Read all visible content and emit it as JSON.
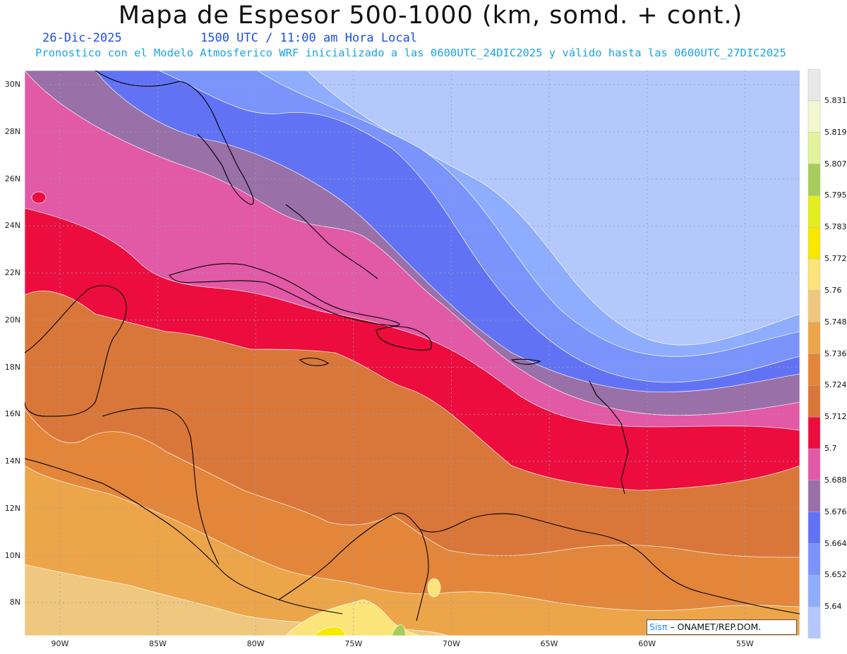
{
  "header": {
    "title": "Mapa de Espesor 500-1000 (km, somd. + cont.)",
    "date": "26-Dic-2025",
    "time": "1500 UTC / 11:00 am Hora Local",
    "description": "Pronostico con el Modelo Atmosferico WRF inicializado a las 0600UTC_24DIC2025 y válido hasta las  0600UTC_27DIC2025"
  },
  "map": {
    "lat_labels": [
      "30N",
      "28N",
      "26N",
      "24N",
      "22N",
      "20N",
      "18N",
      "16N",
      "14N",
      "12N",
      "10N",
      "8N"
    ],
    "lon_labels": [
      "90W",
      "85W",
      "80W",
      "75W",
      "70W",
      "65W",
      "60W",
      "55W"
    ],
    "lat_values": [
      30,
      28,
      26,
      24,
      22,
      20,
      18,
      16,
      14,
      12,
      10,
      8
    ],
    "lon_values": [
      -90,
      -85,
      -80,
      -75,
      -70,
      -65,
      -60,
      -55
    ],
    "extent": {
      "lon_min": -91.8,
      "lon_max": -52.2,
      "lat_min": 6.6,
      "lat_max": 30.6
    },
    "projection": "lat-lon",
    "grid": true
  },
  "colorbar": {
    "labels": [
      "5.831",
      "5.819",
      "5.807",
      "5.795",
      "5.783",
      "5.772",
      "5.76",
      "5.748",
      "5.736",
      "5.724",
      "5.712",
      "5.7",
      "5.688",
      "5.676",
      "5.664",
      "5.652",
      "5.64"
    ],
    "colors": [
      "#e8e8e8",
      "#f2f7d0",
      "#e2f39a",
      "#a6cc5c",
      "#e2ee1e",
      "#f8e800",
      "#fbe47a",
      "#f0c77e",
      "#eda54a",
      "#e3863a",
      "#d9773a",
      "#ec0c3e",
      "#e259a6",
      "#9970a8",
      "#6272f4",
      "#7a94fc",
      "#8fadfd",
      "#b4c8fc"
    ]
  },
  "credit": {
    "logo": "Sisπ",
    "text": "– ONAMET/REP.DOM."
  }
}
